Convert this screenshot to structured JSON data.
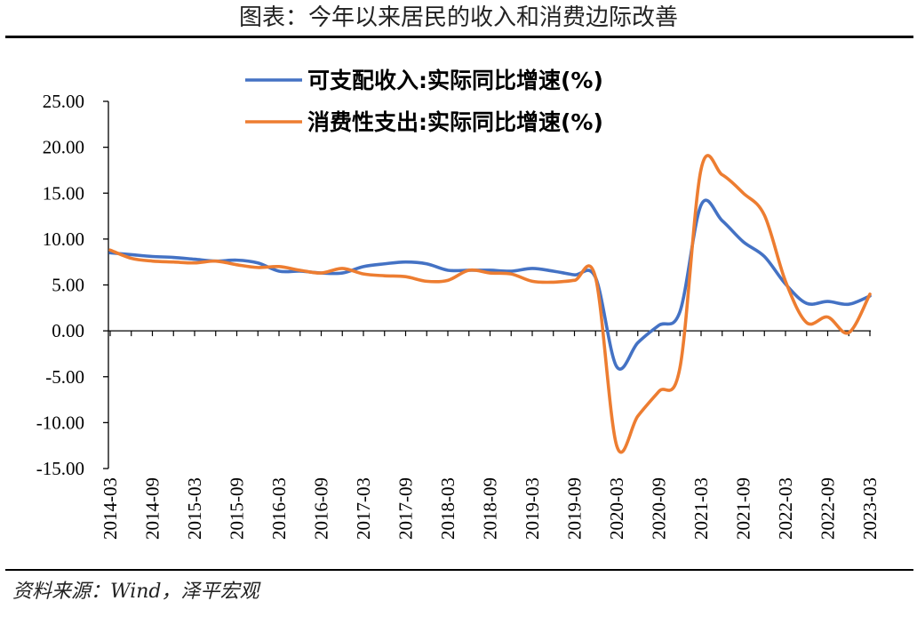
{
  "figure": {
    "title": "图表：今年以来居民的收入和消费边际改善",
    "source": "资料来源：Wind，泽平宏观"
  },
  "chart_data": {
    "type": "line",
    "title": "",
    "xlabel": "",
    "ylabel": "",
    "ylim": [
      -15,
      25
    ],
    "yticks": [
      "25.00",
      "20.00",
      "15.00",
      "10.00",
      "5.00",
      "0.00",
      "-5.00",
      "-10.00",
      "-15.00"
    ],
    "ytick_values": [
      25,
      20,
      15,
      10,
      5,
      0,
      -5,
      -10,
      -15
    ],
    "xticks": [
      "2014-03",
      "2014-09",
      "2015-03",
      "2015-09",
      "2016-03",
      "2016-09",
      "2017-03",
      "2017-09",
      "2018-03",
      "2018-09",
      "2019-03",
      "2019-09",
      "2020-03",
      "2020-09",
      "2021-03",
      "2021-09",
      "2022-03",
      "2022-09",
      "2023-03"
    ],
    "x": [
      "2014-03",
      "2014-06",
      "2014-09",
      "2014-12",
      "2015-03",
      "2015-06",
      "2015-09",
      "2015-12",
      "2016-03",
      "2016-06",
      "2016-09",
      "2016-12",
      "2017-03",
      "2017-06",
      "2017-09",
      "2017-12",
      "2018-03",
      "2018-06",
      "2018-09",
      "2018-12",
      "2019-03",
      "2019-06",
      "2019-09",
      "2019-12",
      "2020-03",
      "2020-06",
      "2020-09",
      "2020-12",
      "2021-03",
      "2021-06",
      "2021-09",
      "2021-12",
      "2022-03",
      "2022-06",
      "2022-09",
      "2022-12",
      "2023-03"
    ],
    "series": [
      {
        "name": "可支配收入:实际同比增速(%)",
        "color": "#4472C4",
        "values": [
          8.5,
          8.3,
          8.1,
          8.0,
          7.8,
          7.6,
          7.7,
          7.4,
          6.5,
          6.5,
          6.3,
          6.3,
          7.0,
          7.3,
          7.5,
          7.3,
          6.6,
          6.6,
          6.6,
          6.5,
          6.8,
          6.5,
          6.1,
          5.8,
          -3.9,
          -1.3,
          0.6,
          2.1,
          13.7,
          12.0,
          9.7,
          8.1,
          5.1,
          3.0,
          3.2,
          2.9,
          3.8
        ]
      },
      {
        "name": "消费性支出:实际同比增速(%)",
        "color": "#ED7D31",
        "values": [
          8.8,
          7.9,
          7.6,
          7.5,
          7.4,
          7.6,
          7.2,
          6.9,
          7.0,
          6.6,
          6.3,
          6.8,
          6.2,
          6.0,
          5.9,
          5.4,
          5.5,
          6.6,
          6.3,
          6.2,
          5.4,
          5.3,
          5.5,
          5.8,
          -12.5,
          -9.3,
          -6.6,
          -4.0,
          17.6,
          17.0,
          15.0,
          12.6,
          5.4,
          0.9,
          1.5,
          -0.2,
          4.0
        ]
      }
    ],
    "legend_position": "top-center",
    "grid": false
  }
}
